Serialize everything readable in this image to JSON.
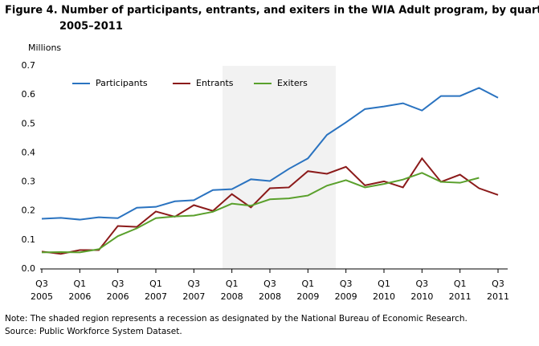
{
  "chart_data": {
    "type": "line",
    "title": [
      "Figure 4. Number of participants, entrants, and exiters in the WIA Adult program, by quarter,",
      "2005–2011"
    ],
    "y_label": "Millions",
    "notes": [
      "Note: The shaded region represents a recession as designated by the National Bureau of Economic Research.",
      "Source: Public Workforce System Dataset."
    ],
    "categories": [
      [
        "Q3",
        "2005"
      ],
      null,
      [
        "Q1",
        "2006"
      ],
      null,
      [
        "Q3",
        "2006"
      ],
      null,
      [
        "Q1",
        "2007"
      ],
      null,
      [
        "Q3",
        "2007"
      ],
      null,
      [
        "Q1",
        "2008"
      ],
      null,
      [
        "Q3",
        "2008"
      ],
      null,
      [
        "Q1",
        "2009"
      ],
      null,
      [
        "Q3",
        "2009"
      ],
      null,
      [
        "Q1",
        "2010"
      ],
      null,
      [
        "Q3",
        "2010"
      ],
      null,
      [
        "Q1",
        "2011"
      ],
      null,
      [
        "Q3",
        "2011"
      ]
    ],
    "ylim": [
      0,
      0.7
    ],
    "yticks": [
      {
        "value": 0,
        "label": "0.0"
      },
      0.1,
      0.2,
      0.3,
      0.4,
      0.5,
      0.6,
      0.7
    ],
    "legend": "top-left",
    "series": [
      {
        "name": "Participants",
        "color": "#2a73c0",
        "values": [
          0.173,
          0.176,
          0.17,
          0.178,
          0.175,
          0.211,
          0.214,
          0.233,
          0.237,
          0.272,
          0.275,
          0.309,
          0.303,
          0.345,
          0.381,
          0.462,
          0.505,
          0.551,
          0.56,
          0.571,
          0.546,
          0.596,
          0.596,
          0.624,
          0.59
        ]
      },
      {
        "name": "Entrants",
        "color": "#8b1a1a",
        "values": [
          0.06,
          0.052,
          0.065,
          0.065,
          0.148,
          0.145,
          0.198,
          0.18,
          0.22,
          0.2,
          0.258,
          0.212,
          0.278,
          0.281,
          0.337,
          0.328,
          0.352,
          0.288,
          0.302,
          0.281,
          0.381,
          0.3,
          0.325,
          0.278,
          0.255
        ]
      },
      {
        "name": "Exiters",
        "color": "#5aa02c",
        "values": [
          0.057,
          0.058,
          0.057,
          0.068,
          0.113,
          0.14,
          0.175,
          0.181,
          0.184,
          0.197,
          0.225,
          0.218,
          0.24,
          0.243,
          0.253,
          0.287,
          0.306,
          0.281,
          0.293,
          0.308,
          0.331,
          0.3,
          0.297,
          0.314,
          null
        ]
      }
    ]
  }
}
